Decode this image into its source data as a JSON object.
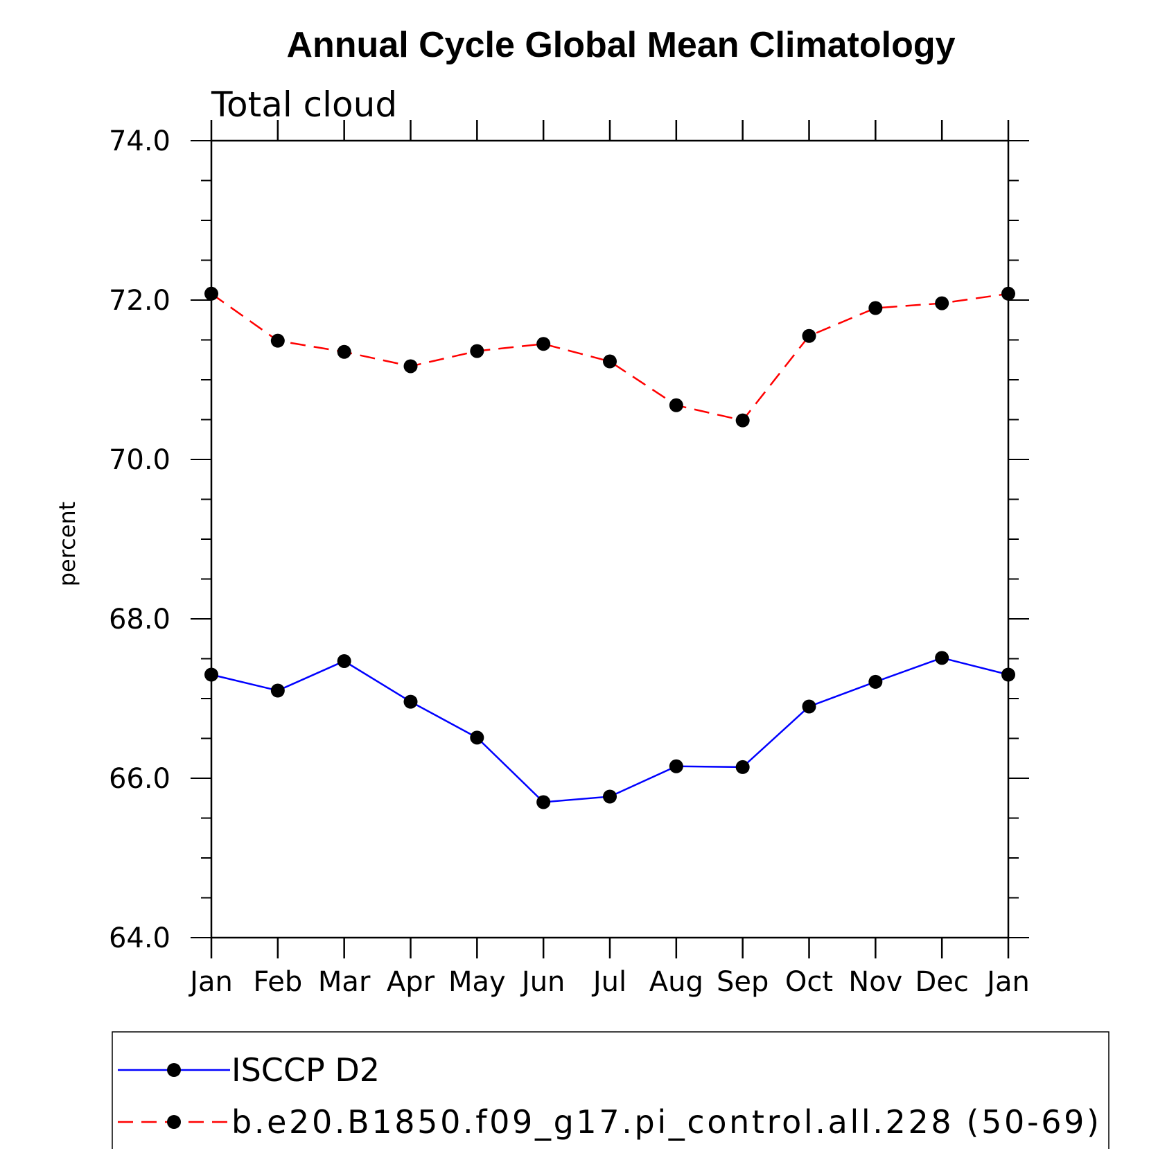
{
  "chart_data": {
    "type": "line",
    "title": "Annual Cycle Global Mean Climatology",
    "subtitle": "Total cloud",
    "xlabel": "",
    "ylabel": "percent",
    "categories": [
      "Jan",
      "Feb",
      "Mar",
      "Apr",
      "May",
      "Jun",
      "Jul",
      "Aug",
      "Sep",
      "Oct",
      "Nov",
      "Dec",
      "Jan"
    ],
    "yticks": [
      "64.0",
      "66.0",
      "68.0",
      "70.0",
      "72.0",
      "74.0"
    ],
    "ylim": [
      64,
      74
    ],
    "grid": false,
    "legend_position": "bottom",
    "series": [
      {
        "name": "ISCCP D2",
        "color": "#0000ff",
        "dash": "solid",
        "marker": "filled-circle",
        "values": [
          67.3,
          67.1,
          67.47,
          66.96,
          66.51,
          65.7,
          65.77,
          66.15,
          66.14,
          66.9,
          67.21,
          67.51,
          67.3
        ]
      },
      {
        "name": "b.e20.B1850.f09_g17.pi_control.all.228 (50-69)",
        "color": "#ff0000",
        "dash": "dashed",
        "marker": "filled-circle",
        "values": [
          72.08,
          71.49,
          71.35,
          71.17,
          71.36,
          71.45,
          71.23,
          70.68,
          70.49,
          71.55,
          71.9,
          71.96,
          72.08
        ]
      }
    ]
  }
}
